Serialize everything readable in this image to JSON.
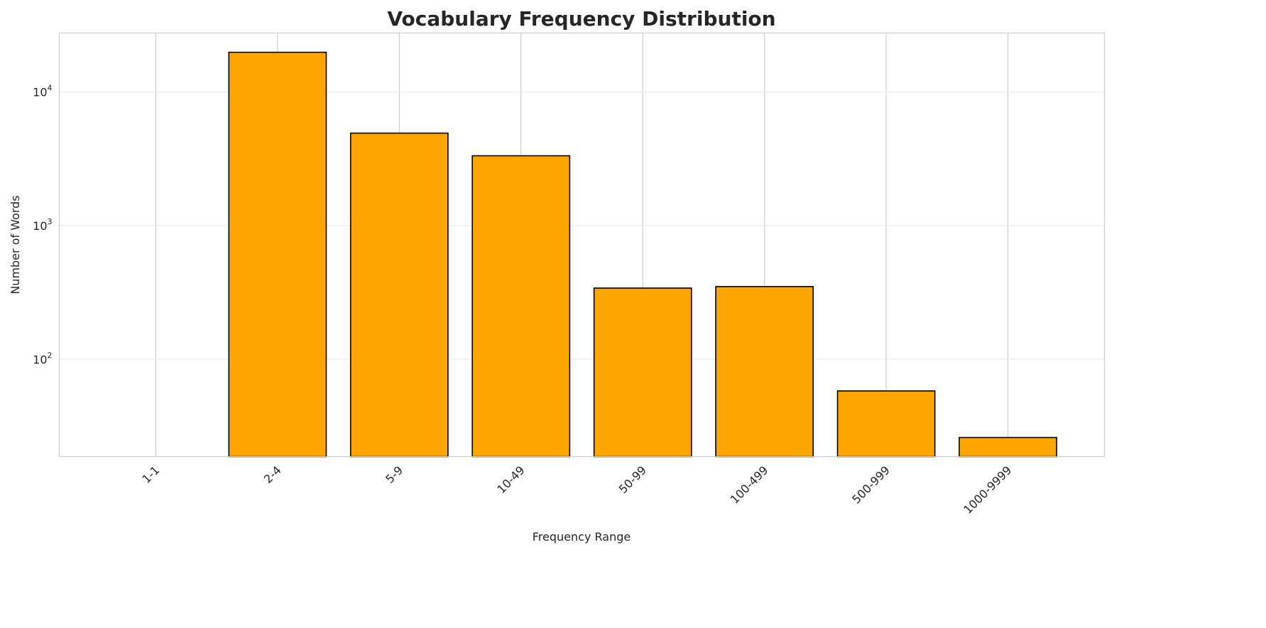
{
  "chart_data": {
    "type": "bar",
    "title": "Vocabulary Frequency Distribution",
    "xlabel": "Frequency Range",
    "ylabel": "Number of Words",
    "categories": [
      "1-1",
      "2-4",
      "5-9",
      "10-49",
      "50-99",
      "100-499",
      "500-999",
      "1000-9999"
    ],
    "values": [
      0,
      19800,
      4920,
      3330,
      341,
      350,
      58,
      26
    ],
    "y_scale": "log",
    "ylim": [
      18.7,
      27600
    ],
    "y_ticks": [
      100,
      1000,
      10000
    ],
    "y_tick_labels": [
      {
        "base": "10",
        "exp": "2"
      },
      {
        "base": "10",
        "exp": "3"
      },
      {
        "base": "10",
        "exp": "4"
      }
    ],
    "grid": true,
    "bar_color": "#FFA500",
    "edge_color": "#000000"
  }
}
